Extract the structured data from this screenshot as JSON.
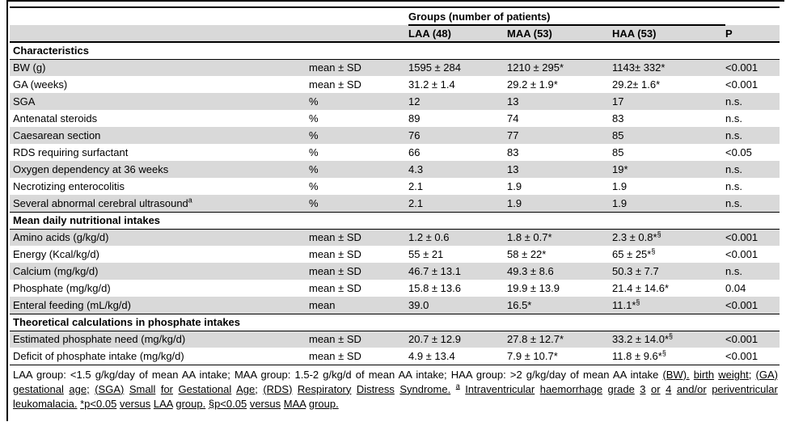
{
  "table": {
    "group_header": "Groups (number of patients)",
    "columns": {
      "laa": "LAA (48)",
      "maa": "MAA (53)",
      "haa": "HAA (53)",
      "p": "P"
    },
    "sections": [
      {
        "title": "Characteristics",
        "rows": [
          {
            "label": "BW (g)",
            "stat": "mean ± SD",
            "laa": "1595 ± 284",
            "maa": "1210 ± 295*",
            "haa": "1143± 332*",
            "p": "<0.001"
          },
          {
            "label": "GA (weeks)",
            "stat": "mean ± SD",
            "laa": "31.2 ± 1.4",
            "maa": "29.2 ± 1.9*",
            "haa": "29.2± 1.6*",
            "p": "<0.001"
          },
          {
            "label": "SGA",
            "stat": "%",
            "laa": "12",
            "maa": "13",
            "haa": "17",
            "p": "n.s."
          },
          {
            "label": "Antenatal steroids",
            "stat": "%",
            "laa": "89",
            "maa": "74",
            "haa": "83",
            "p": "n.s."
          },
          {
            "label": "Caesarean section",
            "stat": "%",
            "laa": "76",
            "maa": "77",
            "haa": "85",
            "p": "n.s."
          },
          {
            "label": "RDS requiring surfactant",
            "stat": "%",
            "laa": "66",
            "maa": "83",
            "haa": "85",
            "p": "<0.05"
          },
          {
            "label": "Oxygen dependency at 36 weeks",
            "stat": "%",
            "laa": "4.3",
            "maa": "13",
            "haa": "19*",
            "p": "n.s."
          },
          {
            "label": "Necrotizing enterocolitis",
            "stat": "%",
            "laa": "2.1",
            "maa": "1.9",
            "haa": "1.9",
            "p": "n.s."
          },
          {
            "label": "Several abnormal cerebral ultrasound",
            "label_sup": "a",
            "stat": "%",
            "laa": "2.1",
            "maa": "1.9",
            "haa": "1.9",
            "p": "n.s."
          }
        ]
      },
      {
        "title": "Mean daily nutritional intakes",
        "rows": [
          {
            "label": "Amino acids (g/kg/d)",
            "stat": "mean ± SD",
            "laa": "1.2 ± 0.6",
            "maa": "1.8 ± 0.7*",
            "haa": "2.3 ± 0.8*§",
            "p": "<0.001"
          },
          {
            "label": "Energy (Kcal/kg/d)",
            "stat": "mean ± SD",
            "laa": "55 ± 21",
            "maa": "58 ± 22*",
            "haa": "65 ± 25*§",
            "p": "<0.001"
          },
          {
            "label": "Calcium (mg/kg/d)",
            "stat": "mean ± SD",
            "laa": "46.7 ± 13.1",
            "maa": "49.3 ± 8.6",
            "haa": "50.3 ± 7.7",
            "p": "n.s."
          },
          {
            "label": "Phosphate (mg/kg/d)",
            "stat": "mean ± SD",
            "laa": "15.8 ± 13.6",
            "maa": "19.9 ± 13.9",
            "haa": "21.4 ± 14.6*",
            "p": "0.04"
          },
          {
            "label": "Enteral feeding (mL/kg/d)",
            "stat": "mean",
            "laa": "39.0",
            "maa": "16.5*",
            "haa": "11.1*§",
            "p": "<0.001"
          }
        ]
      },
      {
        "title": "Theoretical calculations in phosphate intakes",
        "rows": [
          {
            "label": "Estimated phosphate need (mg/kg/d)",
            "stat": "mean ± SD",
            "laa": "20.7 ± 12.9",
            "maa": "27.8 ± 12.7*",
            "haa": "33.2 ± 14.0*§",
            "p": "<0.001"
          },
          {
            "label": "Deficit of phosphate intake (mg/kg/d)",
            "stat": "mean ± SD",
            "laa": "4.9 ± 13.4",
            "maa": "7.9 ± 10.7*",
            "haa": "11.8 ± 9.6*§",
            "p": "<0.001"
          }
        ]
      }
    ]
  },
  "footnote": {
    "plain": "LAA group: <1.5 g/kg/day of mean AA intake; MAA group: 1.5-2 g/kg/d of mean AA intake; HAA group: >2 g/kg/day of mean AA intake ",
    "underlined_1": "(BW). birth weight; (GA) gestational age; (SGA) Small for Gestational Age; (RDS) Respiratory Distress Syndrome.",
    "sup": "a",
    "underlined_2": "Intraventricular haemorrhage grade 3 or 4 and/or periventricular leukomalacia. *p<0.05 versus LAA group. §p<0.05 versus MAA group."
  },
  "colors": {
    "row_shade": "#d9d9d9",
    "rule": "#000000"
  }
}
